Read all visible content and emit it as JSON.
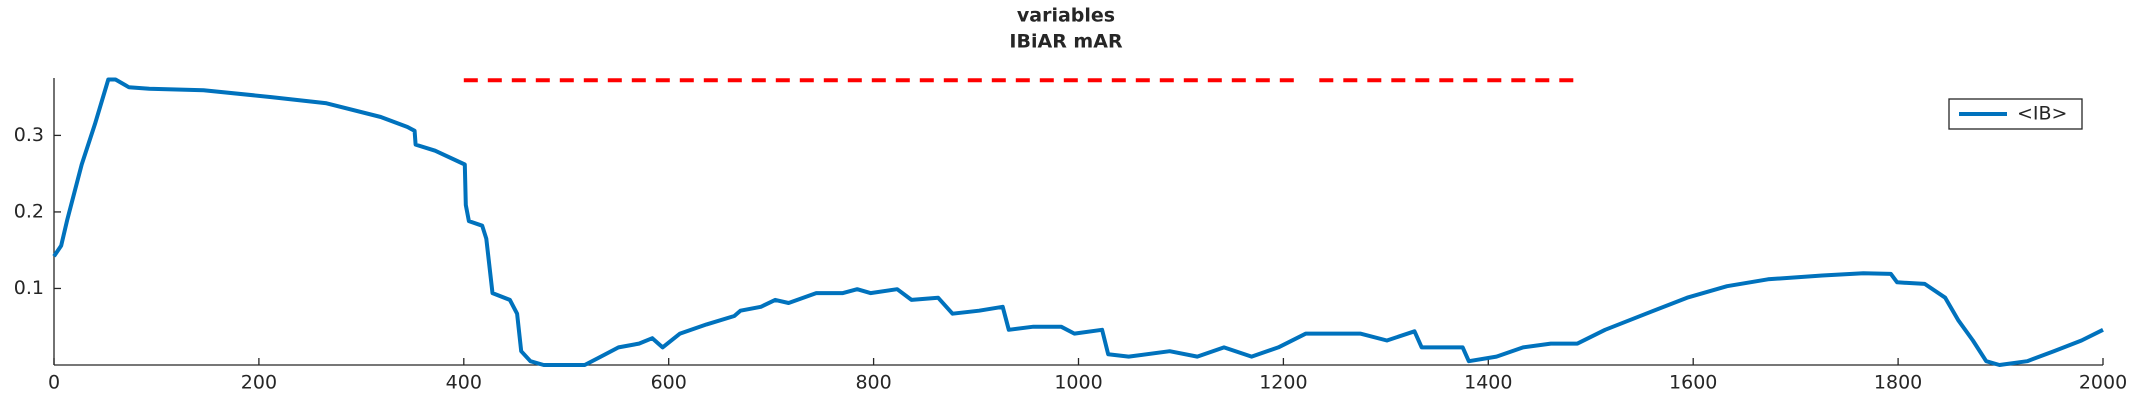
{
  "chart_data": {
    "type": "line",
    "title": "variables",
    "subtitle": "IBiAR mAR",
    "xlim": [
      0,
      2000
    ],
    "xticks": [
      0,
      200,
      400,
      600,
      800,
      1000,
      1200,
      1400,
      1600,
      1800,
      2000
    ],
    "ylim": [
      0,
      0.375
    ],
    "yticks": [
      0.1,
      0.2,
      0.3
    ],
    "legend": "upper right",
    "series": [
      {
        "name": "<IB>",
        "color": "#0072bd",
        "x": [
          0,
          7,
          13,
          27,
          40,
          53,
          60,
          73,
          93,
          146,
          212,
          266,
          319,
          345,
          352,
          353,
          372,
          401,
          402,
          405,
          418,
          422,
          428,
          445,
          452,
          456,
          465,
          478,
          518,
          531,
          551,
          571,
          584,
          594,
          611,
          637,
          664,
          670,
          690,
          704,
          717,
          744,
          770,
          784,
          797,
          823,
          837,
          863,
          877,
          903,
          926,
          932,
          956,
          983,
          996,
          1023,
          1029,
          1049,
          1089,
          1116,
          1142,
          1169,
          1195,
          1222,
          1248,
          1275,
          1301,
          1328,
          1335,
          1375,
          1381,
          1408,
          1434,
          1461,
          1487,
          1514,
          1554,
          1594,
          1633,
          1673,
          1726,
          1766,
          1793,
          1799,
          1826,
          1846,
          1859,
          1873,
          1886,
          1899,
          1926,
          1952,
          1979,
          2000
        ],
        "values": [
          0.142,
          0.156,
          0.19,
          0.262,
          0.315,
          0.373,
          0.373,
          0.363,
          0.361,
          0.359,
          0.35,
          0.342,
          0.324,
          0.311,
          0.306,
          0.288,
          0.28,
          0.262,
          0.209,
          0.188,
          0.182,
          0.165,
          0.094,
          0.085,
          0.067,
          0.018,
          0.005,
          0.0,
          0.0,
          0.009,
          0.023,
          0.028,
          0.035,
          0.023,
          0.041,
          0.053,
          0.064,
          0.071,
          0.076,
          0.085,
          0.081,
          0.094,
          0.094,
          0.099,
          0.094,
          0.099,
          0.085,
          0.088,
          0.067,
          0.071,
          0.076,
          0.046,
          0.05,
          0.05,
          0.041,
          0.046,
          0.014,
          0.011,
          0.018,
          0.011,
          0.023,
          0.011,
          0.023,
          0.041,
          0.041,
          0.041,
          0.032,
          0.044,
          0.023,
          0.023,
          0.005,
          0.011,
          0.023,
          0.028,
          0.028,
          0.046,
          0.067,
          0.088,
          0.103,
          0.112,
          0.117,
          0.12,
          0.119,
          0.108,
          0.106,
          0.088,
          0.058,
          0.032,
          0.005,
          0.0,
          0.005,
          0.018,
          0.032,
          0.046
        ]
      },
      {
        "color": "#ff0000",
        "dashed": true,
        "x": [
          400,
          1211,
          1223,
          1235,
          1487
        ],
        "values": [
          0.372,
          0.372,
          null,
          0.372,
          0.372
        ]
      }
    ]
  }
}
